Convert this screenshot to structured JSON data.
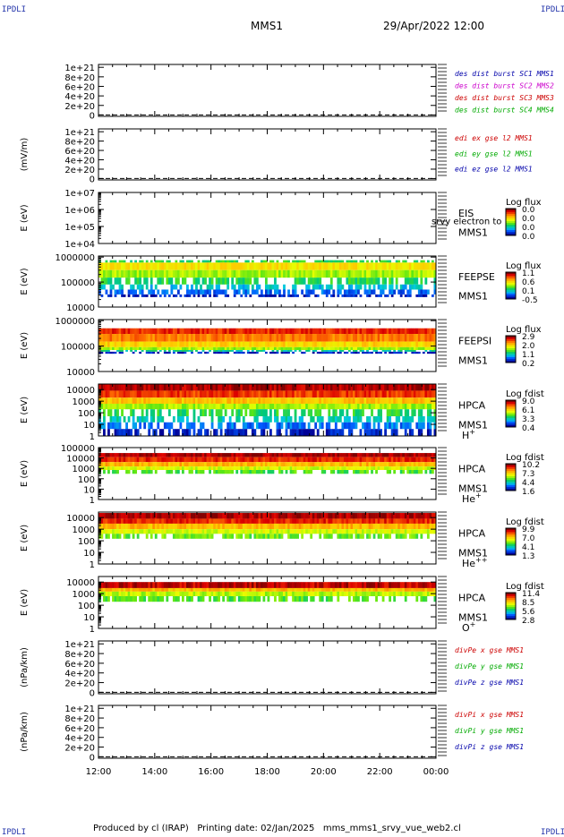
{
  "header": {
    "corner_label": "IPDLI",
    "mission": "MMS1",
    "datetime": "29/Apr/2022 12:00"
  },
  "footer": {
    "text": "Produced by cl (IRAP)   Printing date: 02/Jan/2025   mms_mms1_srvy_vue_web2.cl"
  },
  "chart_data": {
    "type": "heatmap",
    "x_tick_labels": [
      "12:00",
      "14:00",
      "16:00",
      "18:00",
      "20:00",
      "22:00",
      "00:00"
    ],
    "x_range_hours": [
      12,
      24
    ],
    "panels": [
      {
        "kind": "line",
        "ylabel": "",
        "ytick_labels": [
          "1e+21",
          "8e+20",
          "6e+20",
          "4e+20",
          "2e+20",
          "0"
        ],
        "ytick_values": [
          1e+21,
          8e+20,
          6e+20,
          4e+20,
          2e+20,
          0
        ],
        "ylim": [
          -3e+19,
          1.06e+21
        ],
        "legend": [
          {
            "label": "des dist burst SC1 MMS1",
            "color": "#0000aa"
          },
          {
            "label": "des dist burst SC2 MMS2",
            "color": "#cc00cc"
          },
          {
            "label": "des dist burst SC3 MMS3",
            "color": "#cc0000"
          },
          {
            "label": "des dist burst SC4 MMS4",
            "color": "#00aa00"
          }
        ]
      },
      {
        "kind": "line",
        "ylabel": "(mV/m)",
        "ytick_labels": [
          "1e+21",
          "8e+20",
          "6e+20",
          "4e+20",
          "2e+20",
          "0"
        ],
        "ytick_values": [
          1e+21,
          8e+20,
          6e+20,
          4e+20,
          2e+20,
          0
        ],
        "ylim": [
          -3e+19,
          1.06e+21
        ],
        "legend": [
          {
            "label": "edi ex gse l2 MMS1",
            "color": "#cc0000"
          },
          {
            "label": "edi ey gse l2 MMS1",
            "color": "#00aa00"
          },
          {
            "label": "edi ez gse l2 MMS1",
            "color": "#0000aa"
          }
        ]
      },
      {
        "kind": "spec",
        "ylabel": "E (eV)",
        "log": true,
        "ytick_labels": [
          "1e+07",
          "1e+06",
          "1e+05",
          "1e+04"
        ],
        "ytick_values": [
          10000000.0,
          1000000.0,
          100000.0,
          10000.0
        ],
        "ylim": [
          10000.0,
          10000000.0
        ],
        "instrument": "EIS",
        "instrument_sub": "srvy electron to",
        "spacecraft": "MMS1",
        "colorbar_title": "Log flux",
        "colorbar_labels": [
          "0.0",
          "0.0",
          "0.0",
          "0.0"
        ],
        "bands": []
      },
      {
        "kind": "spec",
        "ylabel": "E (eV)",
        "log": true,
        "ytick_labels": [
          "1000000",
          "100000",
          "10000"
        ],
        "ytick_values": [
          1000000.0,
          100000.0,
          10000.0
        ],
        "ylim": [
          10000.0,
          1100000.0
        ],
        "instrument": "FEEPSE",
        "spacecraft": "MMS1",
        "colorbar_title": "Log flux",
        "colorbar_labels": [
          "1.1",
          "0.6",
          "0.1",
          "-0.5"
        ],
        "bands": [
          {
            "e_low": 600000.0,
            "e_high": 750000.0,
            "level": 0.62
          },
          {
            "e_low": 300000.0,
            "e_high": 600000.0,
            "level": 0.38
          },
          {
            "e_low": 150000.0,
            "e_high": 300000.0,
            "level": 0.5
          },
          {
            "e_low": 80000.0,
            "e_high": 150000.0,
            "level": 0.62
          },
          {
            "e_low": 50000.0,
            "e_high": 80000.0,
            "level": 0.75
          },
          {
            "e_low": 32000.0,
            "e_high": 50000.0,
            "level": 0.86
          },
          {
            "e_low": 25000.0,
            "e_high": 32000.0,
            "level": 0.95
          }
        ]
      },
      {
        "kind": "spec",
        "ylabel": "E (eV)",
        "log": true,
        "ytick_labels": [
          "1000000",
          "100000",
          "10000"
        ],
        "ytick_values": [
          1000000.0,
          100000.0,
          10000.0
        ],
        "ylim": [
          10000.0,
          1100000.0
        ],
        "instrument": "FEEPSI",
        "spacecraft": "MMS1",
        "colorbar_title": "Log flux",
        "colorbar_labels": [
          "2.9",
          "2.0",
          "1.1",
          "0.2"
        ],
        "bands": [
          {
            "e_low": 300000.0,
            "e_high": 500000.0,
            "level": 0.12
          },
          {
            "e_low": 150000.0,
            "e_high": 300000.0,
            "level": 0.22
          },
          {
            "e_low": 90000.0,
            "e_high": 150000.0,
            "level": 0.35
          },
          {
            "e_low": 70000.0,
            "e_high": 90000.0,
            "level": 0.5
          },
          {
            "e_low": 60000.0,
            "e_high": 70000.0,
            "level": 0.68
          },
          {
            "e_low": 50000.0,
            "e_high": 60000.0,
            "level": 0.95
          }
        ]
      },
      {
        "kind": "spec",
        "ylabel": "E (eV)",
        "log": true,
        "ytick_labels": [
          "10000",
          "1000",
          "100",
          "10",
          "1"
        ],
        "ytick_values": [
          10000.0,
          1000.0,
          100.0,
          10,
          1
        ],
        "ylim": [
          1,
          30000.0
        ],
        "instrument": "HPCA",
        "spacecraft": "MMS1",
        "species_base": "H",
        "species_sup": "+",
        "colorbar_title": "Log fdist",
        "colorbar_labels": [
          "9.0",
          "6.1",
          "3.3",
          "0.4"
        ],
        "bands": [
          {
            "e_low": 8000.0,
            "e_high": 30000.0,
            "level": 0.04
          },
          {
            "e_low": 2000.0,
            "e_high": 8000.0,
            "level": 0.14
          },
          {
            "e_low": 600.0,
            "e_high": 2000.0,
            "level": 0.32
          },
          {
            "e_low": 200.0,
            "e_high": 600.0,
            "level": 0.5
          },
          {
            "e_low": 50,
            "e_high": 200.0,
            "level": 0.62
          },
          {
            "e_low": 15,
            "e_high": 50,
            "level": 0.72
          },
          {
            "e_low": 4,
            "e_high": 15,
            "level": 0.84
          },
          {
            "e_low": 1,
            "e_high": 4,
            "level": 0.95
          }
        ]
      },
      {
        "kind": "spec",
        "ylabel": "E (eV)",
        "log": true,
        "ytick_labels": [
          "100000",
          "10000",
          "1000",
          "100",
          "10",
          "1"
        ],
        "ytick_values": [
          100000.0,
          10000.0,
          1000.0,
          100.0,
          10,
          1
        ],
        "ylim": [
          1,
          100000.0
        ],
        "instrument": "HPCA",
        "spacecraft": "MMS1",
        "species_base": "He",
        "species_sup": "+",
        "colorbar_title": "Log fdist",
        "colorbar_labels": [
          "10.2",
          "7.3",
          "4.4",
          "1.6"
        ],
        "bands": [
          {
            "e_low": 12000.0,
            "e_high": 30000.0,
            "level": 0.03
          },
          {
            "e_low": 4000.0,
            "e_high": 12000.0,
            "level": 0.12
          },
          {
            "e_low": 1500.0,
            "e_high": 4000.0,
            "level": 0.3
          },
          {
            "e_low": 700.0,
            "e_high": 1500.0,
            "level": 0.45
          },
          {
            "e_low": 300.0,
            "e_high": 700.0,
            "level": 0.58
          }
        ]
      },
      {
        "kind": "spec",
        "ylabel": "E (eV)",
        "log": true,
        "ytick_labels": [
          "10000",
          "1000",
          "100",
          "10",
          "1"
        ],
        "ytick_values": [
          10000.0,
          1000.0,
          100.0,
          10,
          1
        ],
        "ylim": [
          1,
          30000.0
        ],
        "instrument": "HPCA",
        "spacecraft": "MMS1",
        "species_base": "He",
        "species_sup": "++",
        "colorbar_title": "Log fdist",
        "colorbar_labels": [
          "9.9",
          "7.0",
          "4.1",
          "1.3"
        ],
        "bands": [
          {
            "e_low": 8000.0,
            "e_high": 25000.0,
            "level": 0.04
          },
          {
            "e_low": 3000.0,
            "e_high": 8000.0,
            "level": 0.12
          },
          {
            "e_low": 1000.0,
            "e_high": 3000.0,
            "level": 0.3
          },
          {
            "e_low": 400.0,
            "e_high": 1000.0,
            "level": 0.45
          },
          {
            "e_low": 150.0,
            "e_high": 400.0,
            "level": 0.55
          }
        ]
      },
      {
        "kind": "spec",
        "ylabel": "E (eV)",
        "log": true,
        "ytick_labels": [
          "10000",
          "1000",
          "100",
          "10",
          "1"
        ],
        "ytick_values": [
          10000.0,
          1000.0,
          100.0,
          10,
          1
        ],
        "ylim": [
          1,
          30000.0
        ],
        "instrument": "HPCA",
        "spacecraft": "MMS1",
        "species_base": "O",
        "species_sup": "+",
        "colorbar_title": "Log fdist",
        "colorbar_labels": [
          "11.4",
          "8.5",
          "5.6",
          "2.8"
        ],
        "bands": [
          {
            "e_low": 3000.0,
            "e_high": 10000.0,
            "level": 0.06
          },
          {
            "e_low": 1500.0,
            "e_high": 3000.0,
            "level": 0.3
          },
          {
            "e_low": 600.0,
            "e_high": 1500.0,
            "level": 0.48
          },
          {
            "e_low": 200.0,
            "e_high": 600.0,
            "level": 0.58
          }
        ]
      },
      {
        "kind": "line",
        "ylabel": "(nPa/km)",
        "ytick_labels": [
          "1e+21",
          "8e+20",
          "6e+20",
          "4e+20",
          "2e+20",
          "0"
        ],
        "ytick_values": [
          1e+21,
          8e+20,
          6e+20,
          4e+20,
          2e+20,
          0
        ],
        "ylim": [
          -3e+19,
          1.06e+21
        ],
        "legend": [
          {
            "label": "divPe x gse MMS1",
            "color": "#cc0000"
          },
          {
            "label": "divPe y gse MMS1",
            "color": "#00aa00"
          },
          {
            "label": "divPe z gse MMS1",
            "color": "#0000aa"
          }
        ]
      },
      {
        "kind": "line",
        "ylabel": "(nPa/km)",
        "ytick_labels": [
          "1e+21",
          "8e+20",
          "6e+20",
          "4e+20",
          "2e+20",
          "0"
        ],
        "ytick_values": [
          1e+21,
          8e+20,
          6e+20,
          4e+20,
          2e+20,
          0
        ],
        "ylim": [
          -3e+19,
          1.06e+21
        ],
        "legend": [
          {
            "label": "divPi x gse MMS1",
            "color": "#cc0000"
          },
          {
            "label": "divPi y gse MMS1",
            "color": "#00aa00"
          },
          {
            "label": "divPi z gse MMS1",
            "color": "#0000aa"
          }
        ]
      }
    ]
  }
}
